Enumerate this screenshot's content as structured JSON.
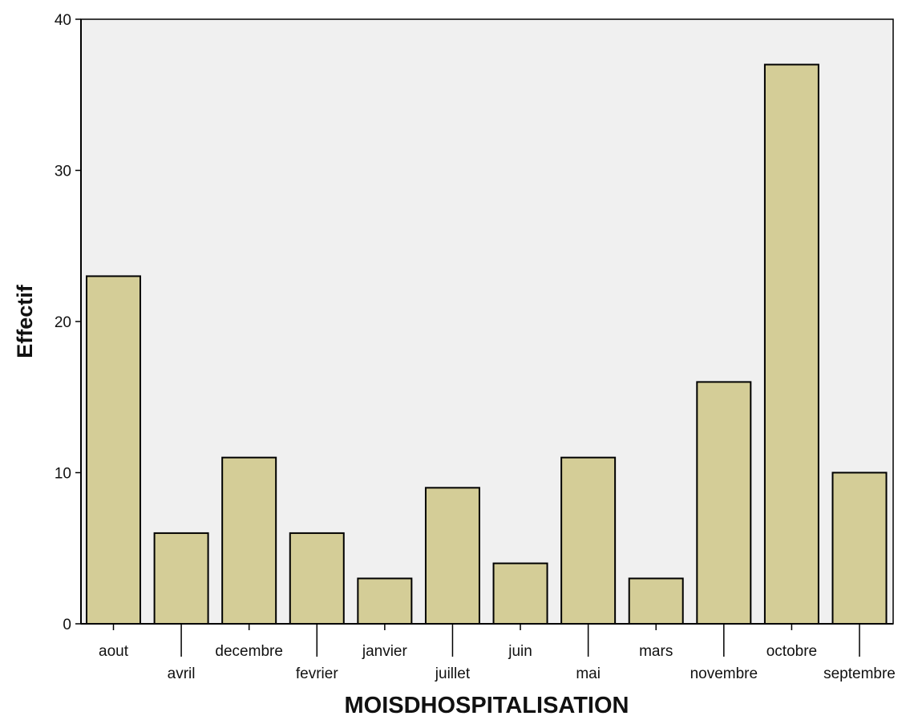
{
  "chart_data": {
    "type": "bar",
    "title": "",
    "xlabel": "MOISDHOSPITALISATION",
    "ylabel": "Effectif",
    "categories": [
      "aout",
      "avril",
      "decembre",
      "fevrier",
      "janvier",
      "juillet",
      "juin",
      "mai",
      "mars",
      "novembre",
      "octobre",
      "septembre"
    ],
    "values": [
      23,
      6,
      11,
      6,
      3,
      9,
      4,
      11,
      3,
      16,
      37,
      10
    ],
    "ylim": [
      0,
      40
    ],
    "yticks": [
      0,
      10,
      20,
      30,
      40
    ],
    "grid": false,
    "legend": "none"
  },
  "colors": {
    "bar_fill": "#d4cd97",
    "bar_stroke": "#000000",
    "plot_background": "#f0f0f0",
    "page_background": "#ffffff",
    "axis": "#000000"
  }
}
